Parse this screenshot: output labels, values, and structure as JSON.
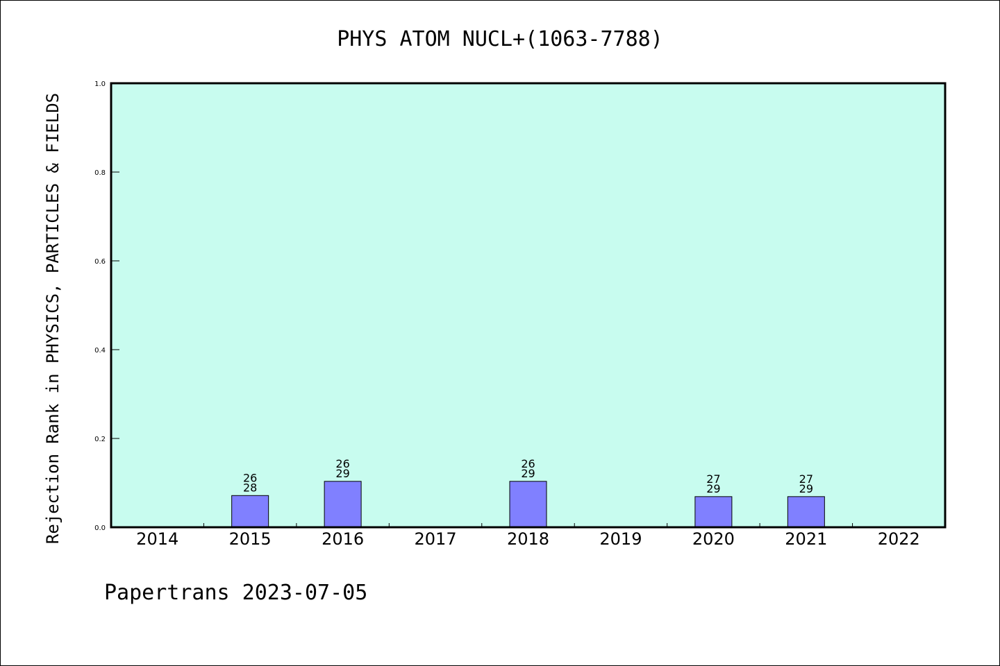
{
  "page": {
    "footer": "Papertrans 2023-07-05"
  },
  "chart_data": {
    "type": "bar",
    "title": "PHYS ATOM NUCL+(1063-7788)",
    "xlabel": "",
    "ylabel": "Rejection Rank in PHYSICS, PARTICLES & FIELDS",
    "ylim": [
      0,
      1.0
    ],
    "yticks": [
      "0.0",
      "0.2",
      "0.4",
      "0.6",
      "0.8",
      "1.0"
    ],
    "ytick_values": [
      0.0,
      0.2,
      0.4,
      0.6,
      0.8,
      1.0
    ],
    "categories": [
      "2014",
      "2015",
      "2016",
      "2017",
      "2018",
      "2019",
      "2020",
      "2021",
      "2022"
    ],
    "values": [
      null,
      0.0714,
      0.1034,
      null,
      0.1034,
      null,
      0.069,
      0.069,
      null
    ],
    "bar_labels": [
      null,
      {
        "rank": "26",
        "total": "28"
      },
      {
        "rank": "26",
        "total": "29"
      },
      null,
      {
        "rank": "26",
        "total": "29"
      },
      null,
      {
        "rank": "27",
        "total": "29"
      },
      {
        "rank": "27",
        "total": "29"
      },
      null
    ],
    "grid": false,
    "legend": "none",
    "colors": {
      "plot_background": "#c8fcef",
      "bar_fill": "#8080ff",
      "bar_stroke": "#000000",
      "axis": "#000000"
    }
  }
}
